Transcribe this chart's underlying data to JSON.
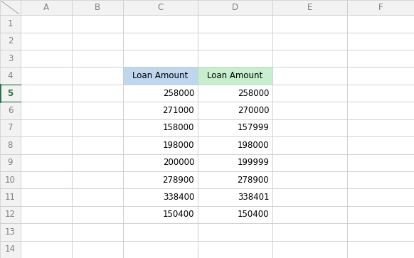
{
  "col_C_header": "Loan Amount",
  "col_D_header": "Loan Amount",
  "col_C_values": [
    258000,
    271000,
    158000,
    198000,
    200000,
    278900,
    338400,
    150400
  ],
  "col_D_values": [
    258000,
    270000,
    157999,
    198000,
    199999,
    278900,
    338401,
    150400
  ],
  "col_C_header_bg": "#BDD7EE",
  "col_D_header_bg": "#C6EFCE",
  "selected_row": 5,
  "selected_row_color": "#217346",
  "grid_color": "#C8C8C8",
  "header_bg": "#F2F2F2",
  "header_text_color": "#7F7F7F",
  "cell_text_color": "#000000",
  "background_color": "#FFFFFF",
  "font_size": 8.5,
  "raw_col_widths": [
    26,
    65,
    65,
    95,
    95,
    95,
    85
  ],
  "raw_row_heights": [
    20,
    23,
    23,
    23,
    23,
    23,
    23,
    23,
    23,
    23,
    23,
    23,
    23,
    23,
    23
  ]
}
